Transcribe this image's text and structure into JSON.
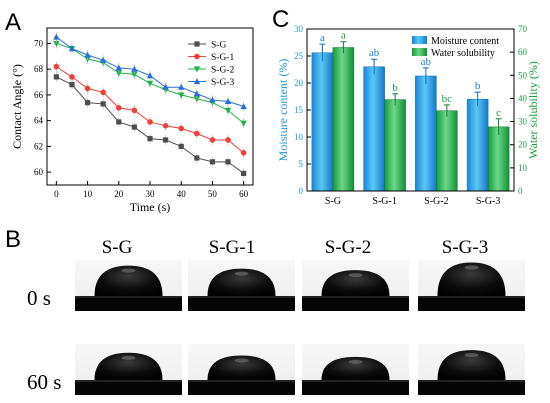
{
  "panels": {
    "a": "A",
    "b": "B",
    "c": "C"
  },
  "chart_data": [
    {
      "type": "line",
      "xlabel": "Time (s)",
      "ylabel": "Contact Angle (°)",
      "x": [
        0,
        5,
        10,
        15,
        20,
        25,
        30,
        35,
        40,
        45,
        50,
        55,
        60
      ],
      "xticks": [
        0,
        10,
        20,
        30,
        40,
        50,
        60
      ],
      "yticks": [
        60,
        62,
        64,
        66,
        68,
        70
      ],
      "xlim": [
        -3,
        63
      ],
      "ylim": [
        59,
        71.2
      ],
      "legend_position": "top-right",
      "series": [
        {
          "name": "S-G",
          "color": "#4d4d4d",
          "marker": "square",
          "values": [
            67.4,
            66.8,
            65.4,
            65.3,
            63.9,
            63.5,
            62.6,
            62.5,
            62.0,
            61.1,
            60.8,
            60.8,
            59.9
          ]
        },
        {
          "name": "S-G-1",
          "color": "#f0403c",
          "marker": "circle",
          "values": [
            68.2,
            67.4,
            66.5,
            66.2,
            65.0,
            64.8,
            63.9,
            63.6,
            63.4,
            63.0,
            62.5,
            62.5,
            61.5
          ]
        },
        {
          "name": "S-G-2",
          "color": "#21b04a",
          "marker": "triangle-down",
          "values": [
            70.0,
            69.6,
            68.8,
            68.5,
            67.7,
            67.6,
            66.9,
            66.4,
            66.0,
            65.7,
            65.4,
            64.8,
            63.8
          ]
        },
        {
          "name": "S-G-3",
          "color": "#2b6fd6",
          "marker": "triangle-up",
          "values": [
            70.5,
            69.6,
            69.1,
            68.7,
            68.1,
            68.0,
            67.5,
            66.6,
            66.6,
            66.1,
            65.6,
            65.5,
            65.1
          ]
        }
      ]
    },
    {
      "type": "bar",
      "categories": [
        "S-G",
        "S-G-1",
        "S-G-2",
        "S-G-3"
      ],
      "ylabel": "Moisture content (%)",
      "y2label": "Water solubility (%)",
      "ylim": [
        0,
        30
      ],
      "y2lim": [
        0,
        70
      ],
      "yticks": [
        0,
        5,
        10,
        15,
        20,
        25,
        30
      ],
      "y2ticks": [
        0,
        10,
        20,
        30,
        40,
        50,
        60,
        70
      ],
      "legend_position": "top-right",
      "series": [
        {
          "name": "Moisture content",
          "axis": "left",
          "color": "#1a9ae0",
          "values": [
            25.6,
            23.0,
            21.3,
            17.0
          ],
          "errors": [
            1.6,
            1.4,
            1.5,
            1.3
          ],
          "letters": [
            "a",
            "ab",
            "ab",
            "b"
          ]
        },
        {
          "name": "Water solubility",
          "axis": "right",
          "color": "#23b04a",
          "values": [
            62.0,
            39.5,
            34.7,
            27.7
          ],
          "errors": [
            2.5,
            2.5,
            2.5,
            3.5
          ],
          "letters": [
            "a",
            "b",
            "bc",
            "c"
          ]
        }
      ]
    }
  ],
  "images": {
    "columns": [
      "S-G",
      "S-G-1",
      "S-G-2",
      "S-G-3"
    ],
    "rows": [
      "0 s",
      "60 s"
    ],
    "drop_height": [
      0.8,
      0.72,
      0.68,
      0.88
    ]
  }
}
